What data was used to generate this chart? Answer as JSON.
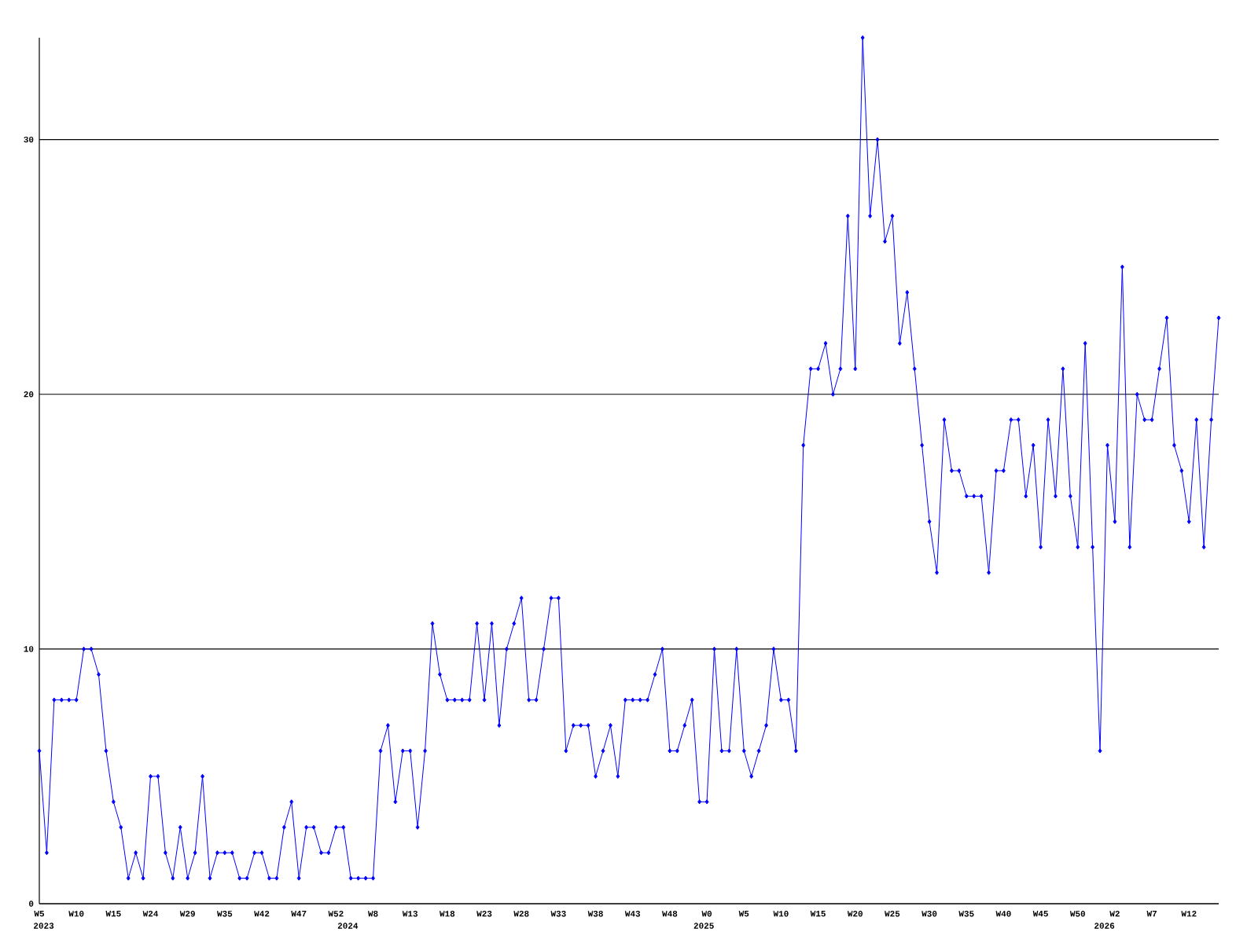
{
  "chart_data": {
    "type": "line",
    "categories": [
      "W5",
      null,
      null,
      null,
      null,
      "W10",
      null,
      null,
      null,
      null,
      "W15",
      null,
      null,
      null,
      null,
      "W24",
      null,
      null,
      null,
      null,
      "W29",
      null,
      null,
      null,
      null,
      "W35",
      null,
      null,
      null,
      null,
      "W42",
      null,
      null,
      null,
      null,
      "W47",
      null,
      null,
      null,
      null,
      "W52",
      null,
      null,
      null,
      null,
      "W8",
      null,
      null,
      null,
      null,
      "W13",
      null,
      null,
      null,
      null,
      "W18",
      null,
      null,
      null,
      null,
      "W23",
      null,
      null,
      null,
      null,
      "W28",
      null,
      null,
      null,
      null,
      "W33",
      null,
      null,
      null,
      null,
      "W38",
      null,
      null,
      null,
      null,
      "W43",
      null,
      null,
      null,
      null,
      "W48",
      null,
      null,
      null,
      null,
      "W0",
      null,
      null,
      null,
      null,
      "W5",
      null,
      null,
      null,
      null,
      "W10",
      null,
      null,
      null,
      null,
      "W15",
      null,
      null,
      null,
      null,
      "W20",
      null,
      null,
      null,
      null,
      "W25",
      null,
      null,
      null,
      null,
      "W30",
      null,
      null,
      null,
      null,
      "W35",
      null,
      null,
      null,
      null,
      "W40",
      null,
      null,
      null,
      null,
      "W45",
      null,
      null,
      null,
      null,
      "W50",
      null,
      null,
      null,
      null,
      "W2",
      null,
      null,
      null,
      null,
      "W7",
      null,
      null,
      null,
      null,
      "W12",
      null,
      null,
      null,
      null
    ],
    "values": [
      6,
      2,
      8,
      8,
      8,
      8,
      10,
      10,
      9,
      6,
      4,
      3,
      1,
      2,
      1,
      5,
      5,
      2,
      1,
      3,
      1,
      2,
      5,
      1,
      2,
      2,
      2,
      1,
      1,
      2,
      2,
      1,
      1,
      3,
      4,
      1,
      3,
      3,
      2,
      2,
      3,
      3,
      1,
      1,
      1,
      1,
      6,
      7,
      4,
      6,
      6,
      3,
      6,
      11,
      9,
      8,
      8,
      8,
      8,
      11,
      8,
      11,
      7,
      10,
      11,
      12,
      8,
      8,
      10,
      12,
      12,
      6,
      7,
      7,
      7,
      5,
      6,
      7,
      5,
      8,
      8,
      8,
      8,
      9,
      10,
      6,
      6,
      7,
      8,
      4,
      4,
      10,
      6,
      6,
      10,
      6,
      5,
      6,
      7,
      10,
      8,
      8,
      6,
      18,
      21,
      21,
      22,
      20,
      21,
      27,
      21,
      34,
      27,
      30,
      26,
      27,
      22,
      24,
      21,
      18,
      15,
      13,
      19,
      17,
      17,
      16,
      16,
      16,
      13,
      17,
      17,
      19,
      19,
      16,
      18,
      14,
      19,
      16,
      21,
      16,
      14,
      22,
      14,
      6,
      18,
      15,
      25,
      14,
      20,
      19,
      19,
      21,
      23,
      18,
      17,
      15,
      19,
      14,
      19,
      23
    ],
    "color": "#0000ff",
    "ylim": [
      0,
      34
    ],
    "yticks": [
      0,
      10,
      20,
      30
    ],
    "grid": "y",
    "marker": "diamond",
    "line_style": "solid",
    "annotations": [
      "2023",
      "2024",
      "2025",
      "2026"
    ]
  }
}
